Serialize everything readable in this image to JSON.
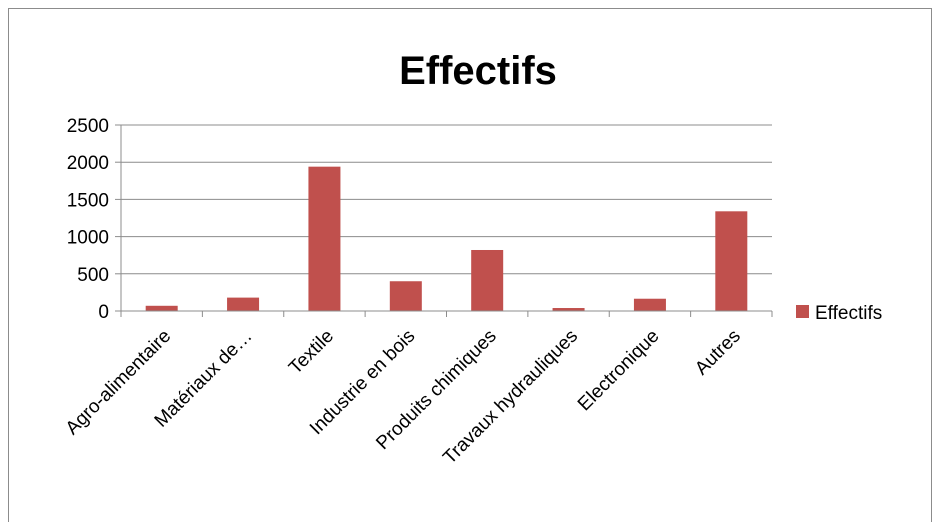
{
  "chart_data": {
    "type": "bar",
    "title": "Effectifs",
    "categories": [
      "Agro-alimentaire",
      "Matériaux de…",
      "Textile",
      "Industrie en bois",
      "Produits chimiques",
      "Travaux hydrauliques",
      "Electronique",
      "Autres"
    ],
    "series": [
      {
        "name": "Effectifs",
        "color": "#c0504d",
        "values": [
          70,
          180,
          1940,
          400,
          820,
          40,
          165,
          1340
        ]
      }
    ],
    "ylim": [
      0,
      2500
    ],
    "yticks": [
      0,
      500,
      1000,
      1500,
      2000,
      2500
    ],
    "grid": true,
    "legend_position": "right"
  }
}
